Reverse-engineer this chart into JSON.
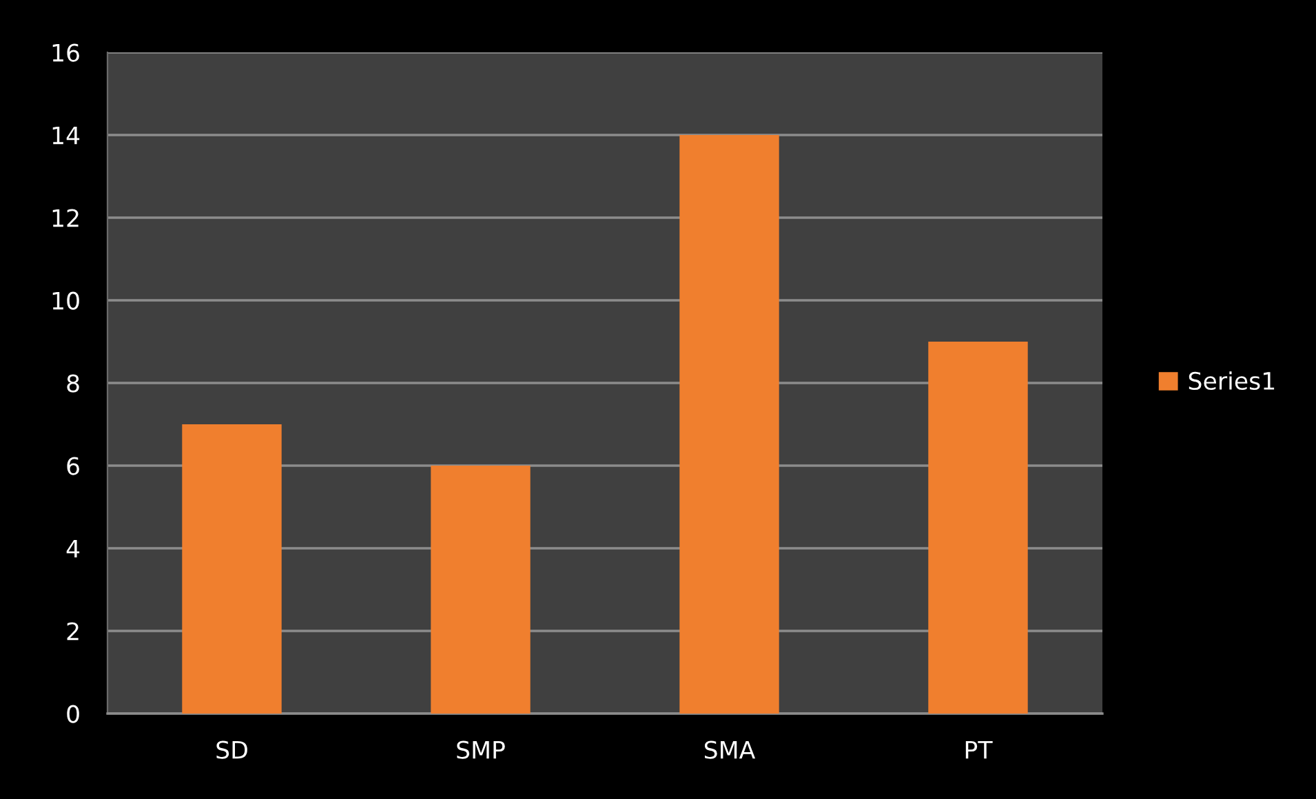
{
  "chart_data": {
    "type": "bar",
    "categories": [
      "SD",
      "SMP",
      "SMA",
      "PT"
    ],
    "series": [
      {
        "name": "Series1",
        "color": "#f07f2e",
        "values": [
          7,
          6,
          14,
          9
        ]
      }
    ],
    "ylim": [
      0,
      16
    ],
    "yticks": [
      0,
      2,
      4,
      6,
      8,
      10,
      12,
      14,
      16
    ],
    "grid": "y",
    "legend": "right"
  }
}
